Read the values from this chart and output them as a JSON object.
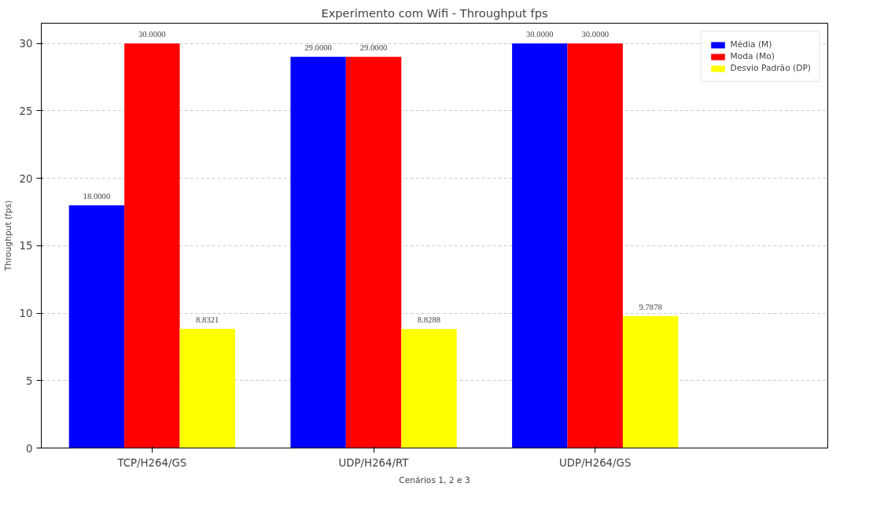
{
  "chart_data": {
    "type": "bar",
    "title": "Experimento com Wifi - Throughput fps",
    "xlabel": "Cenários 1, 2 e 3",
    "ylabel": "Throughput (fps)",
    "categories": [
      "TCP/H264/GS",
      "UDP/H264/RT",
      "UDP/H264/GS"
    ],
    "series": [
      {
        "name": "Média (M)",
        "color": "#0000ff",
        "values": [
          18,
          29,
          30
        ],
        "value_labels": [
          "18.0000",
          "29.0000",
          "30.0000"
        ]
      },
      {
        "name": "Moda (Mo)",
        "color": "#ff0000",
        "values": [
          30,
          29,
          30
        ],
        "value_labels": [
          "30.0000",
          "29.0000",
          "30.0000"
        ]
      },
      {
        "name": "Desvio Padrão (DP)",
        "color": "#ffff00",
        "values": [
          8.8321,
          8.8288,
          9.7878
        ],
        "value_labels": [
          "8.8321",
          "8.8288",
          "9.7878"
        ]
      }
    ],
    "ylim": [
      0,
      31.5
    ],
    "yticks": [
      0,
      5,
      10,
      15,
      20,
      25,
      30
    ],
    "grid": "y",
    "legend": "top right"
  }
}
